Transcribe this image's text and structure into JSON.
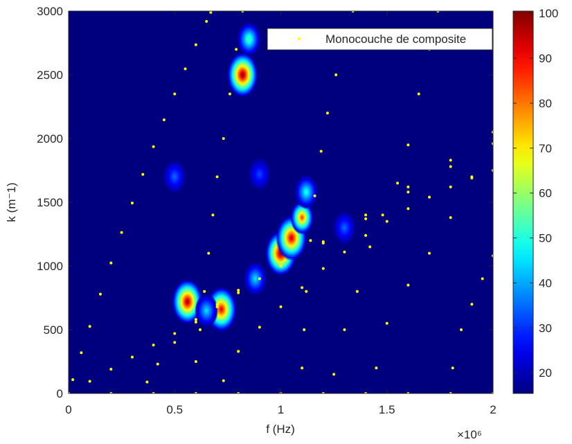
{
  "chart_data": {
    "type": "heatmap",
    "xlabel": "f (Hz)",
    "ylabel": "k (m⁻1)",
    "x_multiplier": "×10⁶",
    "xlim": [
      0,
      2
    ],
    "ylim": [
      0,
      3000
    ],
    "xticks": [
      0,
      0.5,
      1,
      1.5,
      2
    ],
    "yticks": [
      0,
      500,
      1000,
      1500,
      2000,
      2500,
      3000
    ],
    "clim": [
      15.4,
      100.5
    ],
    "cticks": [
      20,
      30,
      40,
      50,
      60,
      70,
      80,
      90,
      100
    ],
    "colormap": "jet",
    "legend": "northeast",
    "hotspots": [
      {
        "x": 0.82,
        "y": 2500,
        "value": 100
      },
      {
        "x": 0.85,
        "y": 2780,
        "value": 55
      },
      {
        "x": 0.56,
        "y": 720,
        "value": 98
      },
      {
        "x": 0.72,
        "y": 660,
        "value": 92
      },
      {
        "x": 1.0,
        "y": 1100,
        "value": 100
      },
      {
        "x": 1.05,
        "y": 1220,
        "value": 95
      },
      {
        "x": 1.1,
        "y": 1380,
        "value": 85
      },
      {
        "x": 1.12,
        "y": 1580,
        "value": 50
      },
      {
        "x": 0.88,
        "y": 900,
        "value": 45
      },
      {
        "x": 0.65,
        "y": 650,
        "value": 45
      },
      {
        "x": 0.5,
        "y": 1700,
        "value": 35
      },
      {
        "x": 0.9,
        "y": 1720,
        "value": 32
      },
      {
        "x": 1.3,
        "y": 1300,
        "value": 35
      }
    ],
    "series": [
      {
        "name": "Monocouche de composite",
        "color": "#ffff00",
        "branches": [
          {
            "x": [
              0.02,
              0.06,
              0.1,
              0.15,
              0.2,
              0.25,
              0.3,
              0.35,
              0.4,
              0.45,
              0.5,
              0.55,
              0.6,
              0.65,
              0.67
            ],
            "y": [
              108,
              319,
              526,
              779,
              1024,
              1263,
              1494,
              1719,
              1936,
              2147,
              2350,
              2547,
              2736,
              2919,
              2990
            ]
          },
          {
            "x": [
              0,
              0.1,
              0.2,
              0.3,
              0.4,
              0.5,
              0.6,
              0.7,
              0.8,
              0.9,
              1.0,
              1.2,
              1.4,
              1.6,
              1.8,
              2.0
            ],
            "y": [
              0,
              95,
              190,
              285,
              380,
              470,
              580,
              700,
              810,
              900,
              1000,
              1180,
              1370,
              1580,
              1780,
              1960
            ]
          },
          {
            "x": [
              0.37,
              0.42,
              0.5,
              0.6,
              0.7,
              0.8,
              1.0,
              1.2,
              1.4,
              1.6,
              1.8,
              2.0
            ],
            "y": [
              90,
              230,
              400,
              560,
              680,
              790,
              1000,
              1190,
              1400,
              1620,
              1830,
              2050
            ]
          },
          {
            "x": [
              0.73,
              0.8,
              0.9,
              1.0,
              1.1,
              1.2,
              1.3,
              1.4,
              1.5,
              1.6,
              1.7,
              1.8,
              1.9,
              2.0
            ],
            "y": [
              100,
              330,
              520,
              680,
              830,
              980,
              1110,
              1240,
              1350,
              1450,
              1540,
              1620,
              1690,
              1750
            ]
          },
          {
            "x": [
              0.6,
              0.62,
              0.64,
              0.66,
              0.68,
              0.7,
              0.73,
              0.76,
              0.79,
              0.82
            ],
            "y": [
              250,
              500,
              800,
              1100,
              1400,
              1700,
              2000,
              2350,
              2700,
              3000
            ]
          },
          {
            "x": [
              1.1,
              1.11,
              1.12,
              1.14,
              1.16,
              1.19,
              1.22,
              1.26,
              1.31,
              1.34
            ],
            "y": [
              200,
              500,
              800,
              1200,
              1550,
              1900,
              2200,
              2500,
              2800,
              3000
            ]
          },
          {
            "x": [
              1.25,
              1.3,
              1.36,
              1.42,
              1.48,
              1.55,
              1.6,
              1.65,
              1.7,
              1.74
            ],
            "y": [
              150,
              500,
              800,
              1150,
              1400,
              1650,
              1950,
              2350,
              2700,
              3000
            ]
          },
          {
            "x": [
              1.45,
              1.5,
              1.6,
              1.7,
              1.8,
              1.9,
              2.0
            ],
            "y": [
              200,
              550,
              850,
              1100,
              1380,
              1700,
              2050
            ]
          },
          {
            "x": [
              1.81,
              1.85,
              1.9,
              1.95,
              2.0
            ],
            "y": [
              200,
              500,
              700,
              900,
              1080
            ]
          },
          {
            "x": [
              0,
              0.2,
              0.4,
              0.6,
              0.8,
              1.0,
              1.2,
              1.4,
              1.6,
              1.8,
              2.0
            ],
            "y": [
              0,
              0,
              0,
              0,
              0,
              0,
              0,
              0,
              0,
              0,
              0
            ]
          }
        ]
      }
    ]
  }
}
